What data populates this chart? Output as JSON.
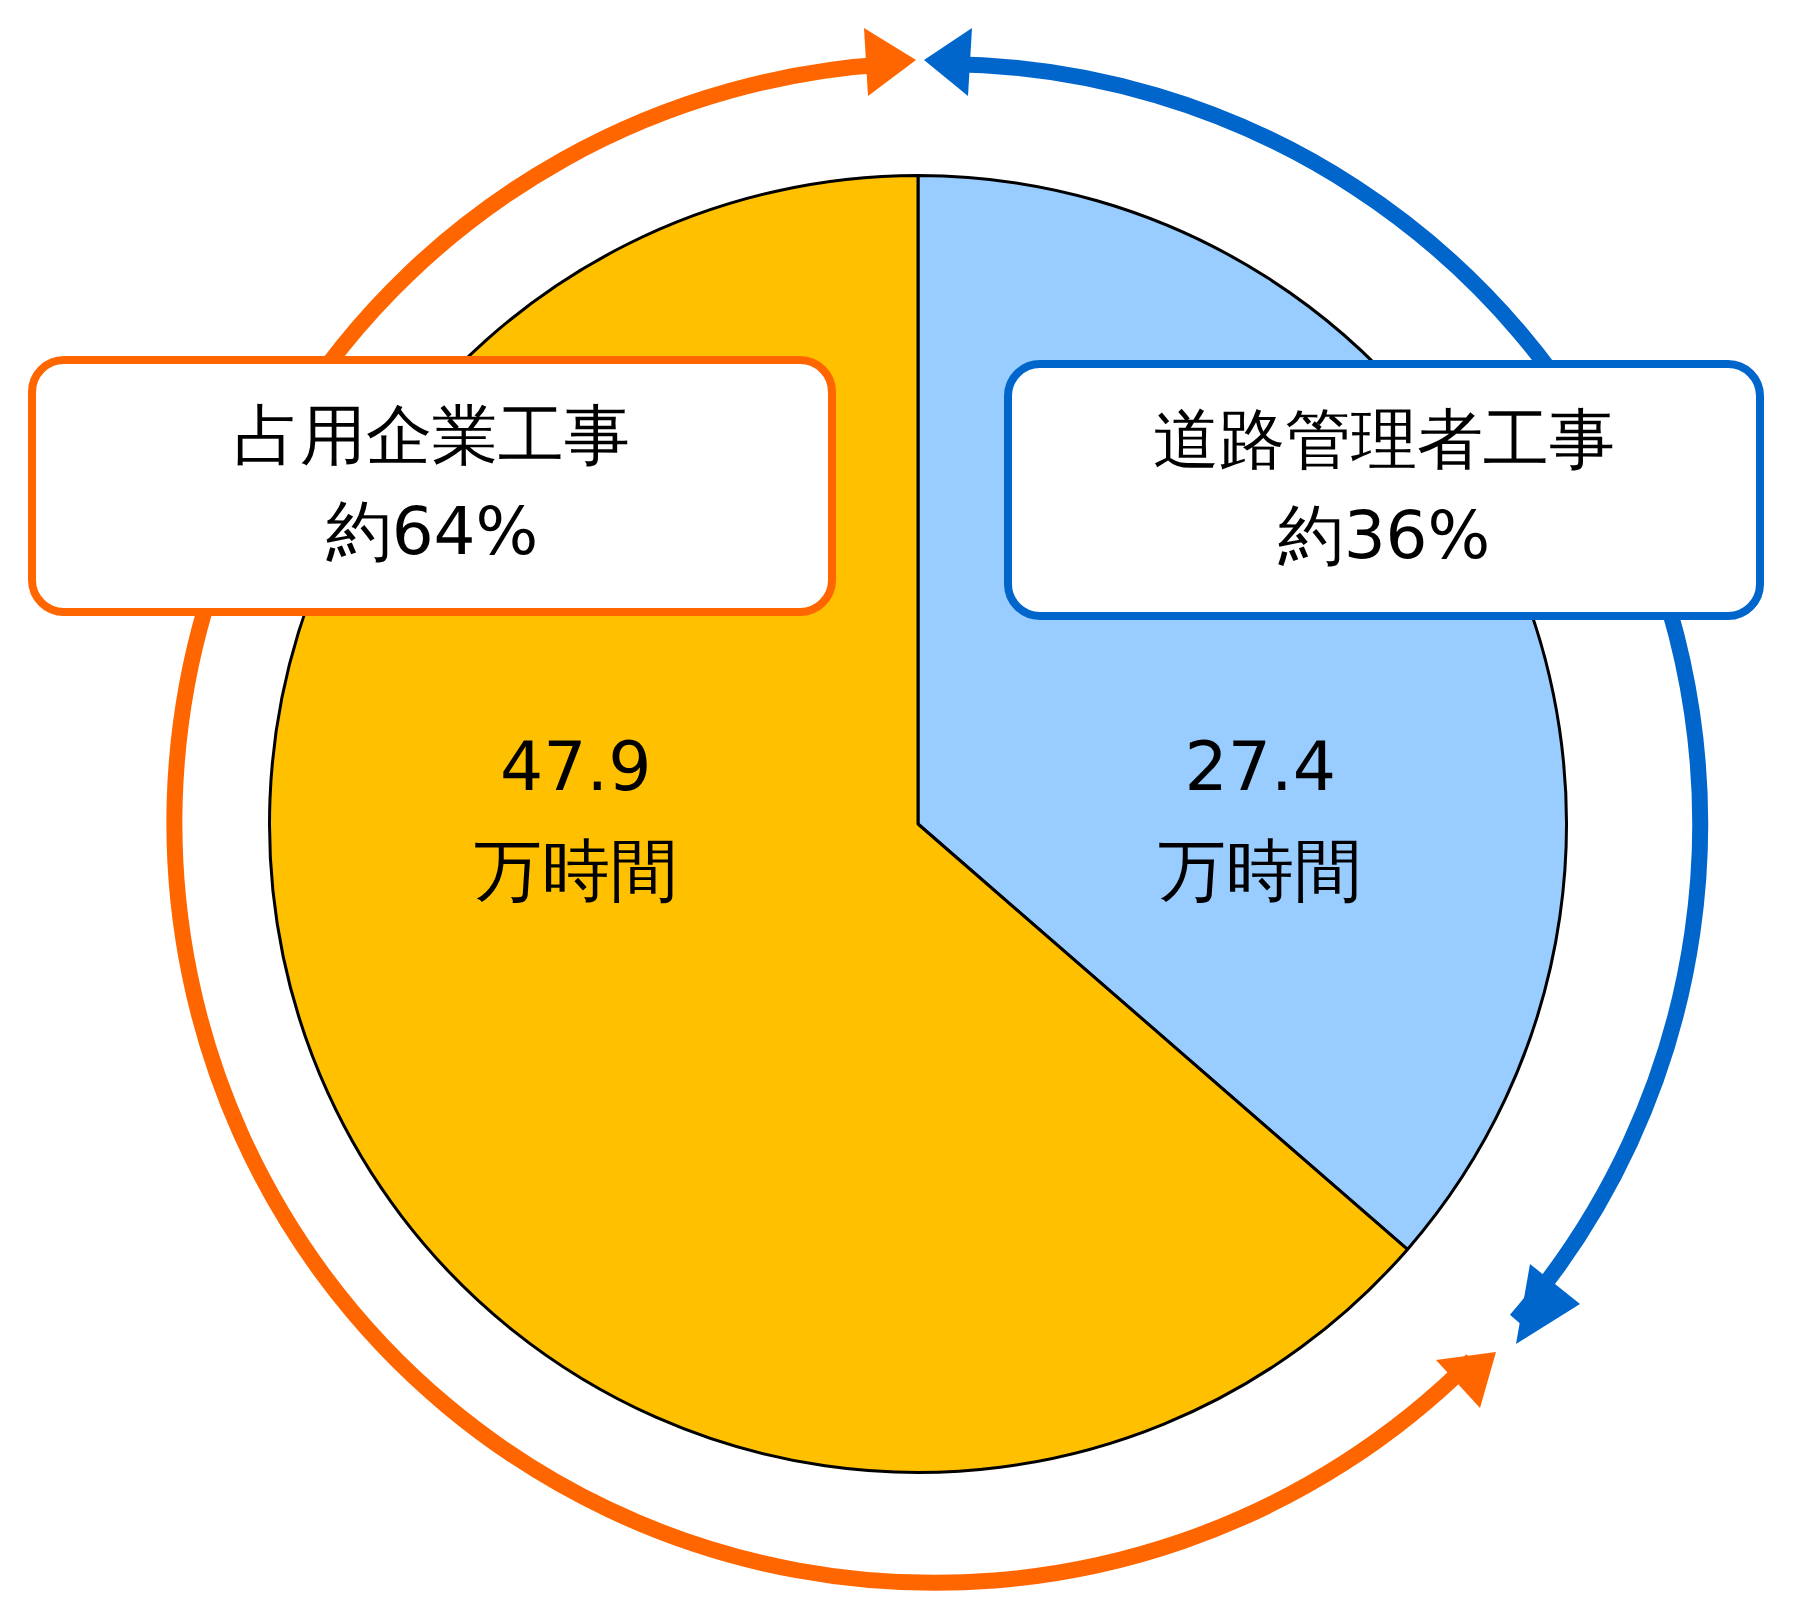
{
  "chart_data": {
    "type": "pie",
    "categories": [
      "道路管理者工事",
      "占用企業工事"
    ],
    "values": [
      27.4,
      47.9
    ],
    "colors": [
      "#99ccff",
      "#ffc000"
    ],
    "value_labels": [
      "27.4\n万時間",
      "47.9\n万時間"
    ],
    "annotations": [
      "約36%",
      "約64%"
    ]
  }
}
